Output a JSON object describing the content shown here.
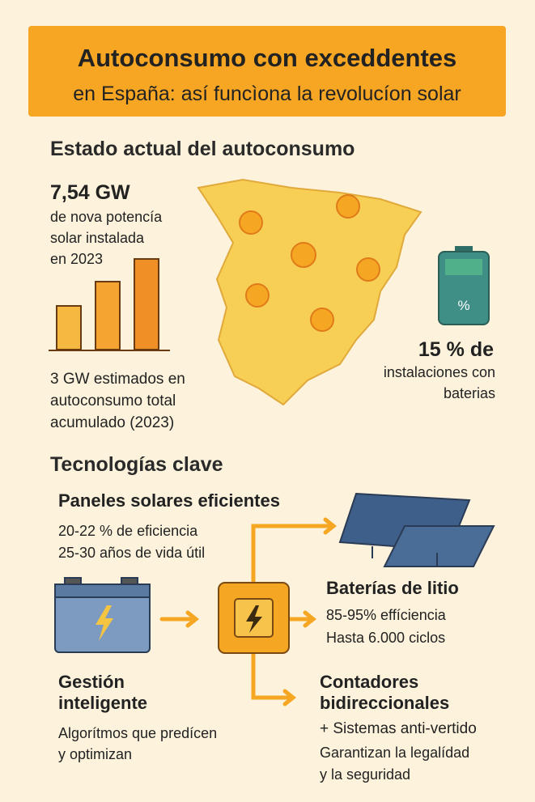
{
  "header": {
    "title_lines": [
      "Autoconsumo con exceddentes",
      "en España: así funcìona la revolucíon solar"
    ]
  },
  "status": {
    "heading": "Estado actual del autoconsumo",
    "capacity": {
      "value": "7,54 GW",
      "lines": [
        "de nova potencía",
        "solar instalada",
        "en 2023"
      ]
    },
    "total": {
      "lines": [
        "3 GW estimados en",
        "autoconsumo total",
        "acumulado (2023)"
      ]
    },
    "battery_share": {
      "icon": "%",
      "value": "15 % de",
      "lines": [
        "instalaciones con",
        "baterias"
      ]
    }
  },
  "technologies": {
    "heading": "Tecnologías clave",
    "panels": {
      "title": "Paneles solares eficientes",
      "lines": [
        "20-22 % de eficiencia",
        "25-30 años de vida útil"
      ]
    },
    "batteries": {
      "title": "Baterías de litio",
      "lines": [
        "85-95% effíciencia",
        "Hasta 6.000 ciclos"
      ]
    },
    "management": {
      "title_lines": [
        "Gestión",
        "inteligente"
      ],
      "lines": [
        "Algorítmos que predícen",
        "y optimizan"
      ]
    },
    "meters": {
      "title_lines": [
        "Contadores",
        "bidireccionales"
      ],
      "subtitle": "+ Sistemas anti-vertido",
      "lines": [
        "Garantizan la legalídad",
        "y la seguridad"
      ]
    }
  }
}
